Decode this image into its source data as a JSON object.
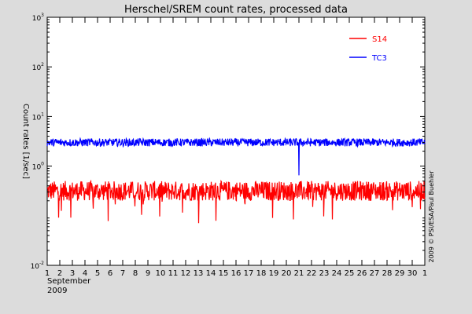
{
  "chart_data": {
    "type": "line",
    "title": "Herschel/SREM count rates, processed data",
    "ylabel": "Count rates [1/sec]",
    "yscale": "log",
    "ylim": [
      0.01,
      1000
    ],
    "y_ticks": [
      {
        "value": 1000,
        "base": "10",
        "exp": "3"
      },
      {
        "value": 100,
        "base": "10",
        "exp": "2"
      },
      {
        "value": 10,
        "base": "10",
        "exp": "1"
      },
      {
        "value": 1,
        "base": "10",
        "exp": "0"
      },
      {
        "value": 0.01,
        "base": "10",
        "exp": "-2"
      }
    ],
    "x_ticks": [
      "1",
      "2",
      "3",
      "4",
      "5",
      "6",
      "7",
      "8",
      "9",
      "10",
      "11",
      "12",
      "13",
      "14",
      "15",
      "16",
      "17",
      "18",
      "19",
      "20",
      "21",
      "22",
      "23",
      "24",
      "25",
      "26",
      "27",
      "28",
      "29",
      "30",
      "1"
    ],
    "x_sublabel_month": "September",
    "x_sublabel_year": "2009",
    "credit": "2009 © PSI/ESA/Paul Buehler",
    "legend_position": "top-right",
    "series": [
      {
        "name": "S14",
        "color": "#ff0000",
        "y_typical_min": 0.2,
        "y_typical_max": 0.5,
        "y_dip_min": 0.07
      },
      {
        "name": "TC3",
        "color": "#0000ff",
        "y_typical_min": 2.5,
        "y_typical_max": 3.6,
        "y_dip_event": {
          "day": 21,
          "y": 0.65
        }
      }
    ]
  }
}
